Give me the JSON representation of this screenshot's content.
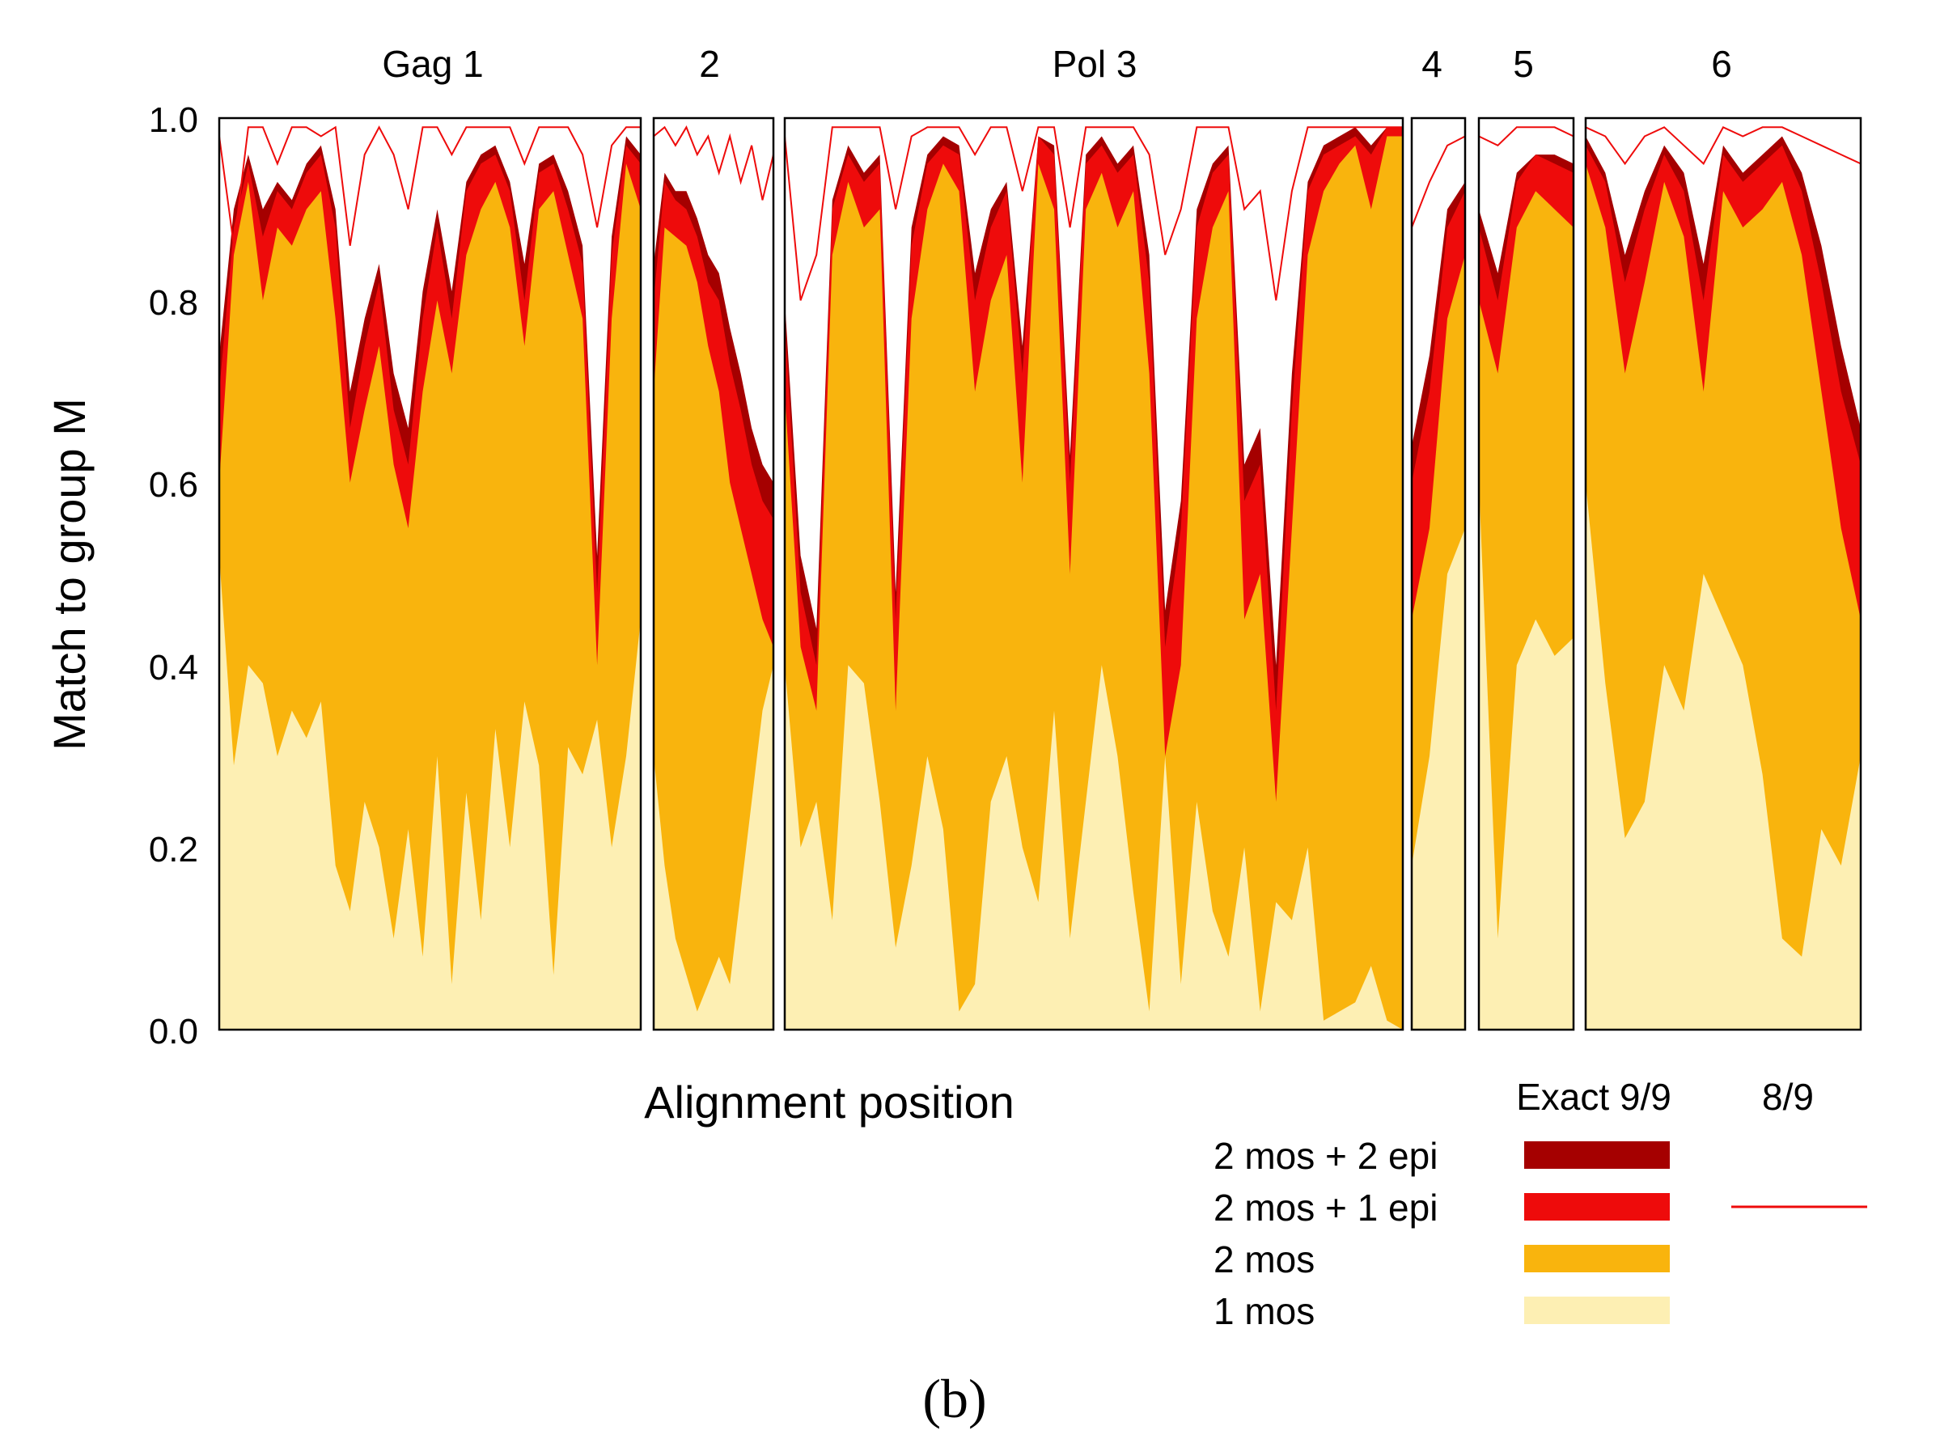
{
  "chart_data": {
    "type": "area",
    "title": "",
    "xlabel": "Alignment position",
    "ylabel": "Match to group M",
    "ylim": [
      0.0,
      1.0
    ],
    "yticks": [
      "0.0",
      "0.2",
      "0.4",
      "0.6",
      "0.8",
      "1.0"
    ],
    "grid": false,
    "panel_label": "(b)",
    "segments": [
      {
        "name": "Gag 1"
      },
      {
        "name": "2"
      },
      {
        "name": "Pol 3"
      },
      {
        "name": "4"
      },
      {
        "name": "5"
      },
      {
        "name": "6"
      }
    ],
    "legend": {
      "column_headers": [
        "Exact 9/9",
        "8/9"
      ],
      "entries": [
        {
          "label": "2 mos + 2 epi",
          "color": "#a50000"
        },
        {
          "label": "2 mos + 1 epi",
          "color": "#ee0b0b",
          "line_8_9": true
        },
        {
          "label": "2 mos",
          "color": "#f9b40d"
        },
        {
          "label": "1 mos",
          "color": "#fdefb3"
        }
      ]
    },
    "series": [
      {
        "name": "1 mos",
        "color": "#fdefb3",
        "segment_values": [
          [
            0.52,
            0.29,
            0.4,
            0.38,
            0.3,
            0.35,
            0.32,
            0.36,
            0.18,
            0.13,
            0.25,
            0.2,
            0.1,
            0.22,
            0.08,
            0.3,
            0.05,
            0.26,
            0.12,
            0.33,
            0.2,
            0.36,
            0.29,
            0.06,
            0.31,
            0.28,
            0.34,
            0.2,
            0.3,
            0.45
          ],
          [
            0.3,
            0.18,
            0.1,
            0.06,
            0.02,
            0.05,
            0.08,
            0.05,
            0.15,
            0.25,
            0.35,
            0.4
          ],
          [
            0.4,
            0.2,
            0.25,
            0.12,
            0.4,
            0.38,
            0.25,
            0.09,
            0.18,
            0.3,
            0.22,
            0.02,
            0.05,
            0.25,
            0.3,
            0.2,
            0.14,
            0.35,
            0.1,
            0.25,
            0.4,
            0.3,
            0.15,
            0.02,
            0.3,
            0.05,
            0.25,
            0.13,
            0.08,
            0.2,
            0.02,
            0.14,
            0.12,
            0.2,
            0.01,
            0.02,
            0.03,
            0.07,
            0.01,
            0.0
          ],
          [
            0.18,
            0.3,
            0.5,
            0.55
          ],
          [
            0.6,
            0.1,
            0.4,
            0.45,
            0.41,
            0.43
          ],
          [
            0.6,
            0.38,
            0.21,
            0.25,
            0.4,
            0.35,
            0.5,
            0.45,
            0.4,
            0.28,
            0.1,
            0.08,
            0.22,
            0.18,
            0.3
          ]
        ]
      },
      {
        "name": "2 mos",
        "color": "#f9b40d",
        "segment_values": [
          [
            0.6,
            0.85,
            0.93,
            0.8,
            0.88,
            0.86,
            0.9,
            0.92,
            0.78,
            0.6,
            0.68,
            0.75,
            0.62,
            0.55,
            0.7,
            0.8,
            0.72,
            0.85,
            0.9,
            0.93,
            0.88,
            0.75,
            0.9,
            0.92,
            0.85,
            0.78,
            0.4,
            0.78,
            0.95,
            0.9
          ],
          [
            0.7,
            0.88,
            0.87,
            0.86,
            0.82,
            0.75,
            0.7,
            0.6,
            0.55,
            0.5,
            0.45,
            0.42
          ],
          [
            0.7,
            0.42,
            0.35,
            0.85,
            0.93,
            0.88,
            0.9,
            0.35,
            0.78,
            0.9,
            0.95,
            0.92,
            0.7,
            0.8,
            0.85,
            0.6,
            0.95,
            0.9,
            0.5,
            0.9,
            0.94,
            0.88,
            0.92,
            0.72,
            0.3,
            0.4,
            0.78,
            0.88,
            0.92,
            0.45,
            0.5,
            0.25,
            0.55,
            0.85,
            0.92,
            0.95,
            0.97,
            0.9,
            0.98,
            0.98
          ],
          [
            0.45,
            0.55,
            0.78,
            0.85
          ],
          [
            0.8,
            0.72,
            0.88,
            0.92,
            0.9,
            0.88
          ],
          [
            0.95,
            0.88,
            0.72,
            0.82,
            0.93,
            0.87,
            0.7,
            0.92,
            0.88,
            0.9,
            0.93,
            0.85,
            0.7,
            0.55,
            0.45
          ]
        ]
      },
      {
        "name": "2 mos + 1 epi",
        "color": "#ee0b0b",
        "segment_values": [
          [
            0.7,
            0.88,
            0.95,
            0.87,
            0.92,
            0.9,
            0.94,
            0.96,
            0.88,
            0.66,
            0.75,
            0.82,
            0.68,
            0.62,
            0.78,
            0.88,
            0.78,
            0.92,
            0.95,
            0.96,
            0.92,
            0.8,
            0.94,
            0.95,
            0.9,
            0.84,
            0.48,
            0.85,
            0.97,
            0.95
          ],
          [
            0.8,
            0.93,
            0.91,
            0.9,
            0.87,
            0.82,
            0.8,
            0.73,
            0.68,
            0.62,
            0.58,
            0.56
          ],
          [
            0.78,
            0.48,
            0.4,
            0.9,
            0.96,
            0.93,
            0.95,
            0.45,
            0.86,
            0.95,
            0.97,
            0.96,
            0.8,
            0.88,
            0.92,
            0.72,
            0.98,
            0.96,
            0.6,
            0.95,
            0.97,
            0.94,
            0.96,
            0.82,
            0.42,
            0.55,
            0.88,
            0.94,
            0.96,
            0.58,
            0.62,
            0.35,
            0.68,
            0.92,
            0.96,
            0.97,
            0.98,
            0.96,
            0.99,
            0.99
          ],
          [
            0.6,
            0.7,
            0.88,
            0.92
          ],
          [
            0.88,
            0.8,
            0.93,
            0.96,
            0.95,
            0.94
          ],
          [
            0.97,
            0.93,
            0.82,
            0.9,
            0.96,
            0.92,
            0.8,
            0.96,
            0.93,
            0.95,
            0.97,
            0.92,
            0.82,
            0.7,
            0.62
          ]
        ]
      },
      {
        "name": "2 mos + 2 epi",
        "color": "#a50000",
        "segment_values": [
          [
            0.74,
            0.9,
            0.96,
            0.9,
            0.93,
            0.91,
            0.95,
            0.97,
            0.9,
            0.7,
            0.78,
            0.84,
            0.72,
            0.66,
            0.81,
            0.9,
            0.81,
            0.93,
            0.96,
            0.97,
            0.93,
            0.84,
            0.95,
            0.96,
            0.92,
            0.86,
            0.52,
            0.87,
            0.98,
            0.96
          ],
          [
            0.84,
            0.94,
            0.92,
            0.92,
            0.89,
            0.85,
            0.83,
            0.77,
            0.72,
            0.66,
            0.62,
            0.6
          ],
          [
            0.8,
            0.52,
            0.44,
            0.91,
            0.97,
            0.94,
            0.96,
            0.48,
            0.88,
            0.96,
            0.98,
            0.97,
            0.83,
            0.9,
            0.93,
            0.75,
            0.98,
            0.97,
            0.63,
            0.96,
            0.98,
            0.95,
            0.97,
            0.85,
            0.46,
            0.58,
            0.9,
            0.95,
            0.97,
            0.62,
            0.66,
            0.4,
            0.72,
            0.93,
            0.97,
            0.98,
            0.99,
            0.97,
            0.99,
            0.99
          ],
          [
            0.64,
            0.74,
            0.9,
            0.93
          ],
          [
            0.9,
            0.83,
            0.94,
            0.96,
            0.96,
            0.95
          ],
          [
            0.98,
            0.94,
            0.85,
            0.92,
            0.97,
            0.94,
            0.84,
            0.97,
            0.94,
            0.96,
            0.98,
            0.94,
            0.86,
            0.75,
            0.66
          ]
        ]
      },
      {
        "name": "8/9 (2 mos + 1 epi)",
        "color": "#ee0b0b",
        "style": "line",
        "segment_values": [
          [
            0.98,
            0.86,
            0.99,
            0.99,
            0.95,
            0.99,
            0.99,
            0.98,
            0.99,
            0.86,
            0.96,
            0.99,
            0.96,
            0.9,
            0.99,
            0.99,
            0.96,
            0.99,
            0.99,
            0.99,
            0.99,
            0.95,
            0.99,
            0.99,
            0.99,
            0.96,
            0.88,
            0.97,
            0.99,
            0.99
          ],
          [
            0.98,
            0.99,
            0.97,
            0.99,
            0.96,
            0.98,
            0.94,
            0.98,
            0.93,
            0.97,
            0.91,
            0.96
          ],
          [
            0.98,
            0.8,
            0.85,
            0.99,
            0.99,
            0.99,
            0.99,
            0.9,
            0.98,
            0.99,
            0.99,
            0.99,
            0.96,
            0.99,
            0.99,
            0.92,
            0.99,
            0.99,
            0.88,
            0.99,
            0.99,
            0.99,
            0.99,
            0.96,
            0.85,
            0.9,
            0.99,
            0.99,
            0.99,
            0.9,
            0.92,
            0.8,
            0.92,
            0.99,
            0.99,
            0.99,
            0.99,
            0.99,
            0.99,
            0.99
          ],
          [
            0.88,
            0.93,
            0.97,
            0.98
          ],
          [
            0.98,
            0.97,
            0.99,
            0.99,
            0.99,
            0.98
          ],
          [
            0.99,
            0.98,
            0.95,
            0.98,
            0.99,
            0.97,
            0.95,
            0.99,
            0.98,
            0.99,
            0.99,
            0.98,
            0.97,
            0.96,
            0.95
          ]
        ]
      }
    ]
  }
}
